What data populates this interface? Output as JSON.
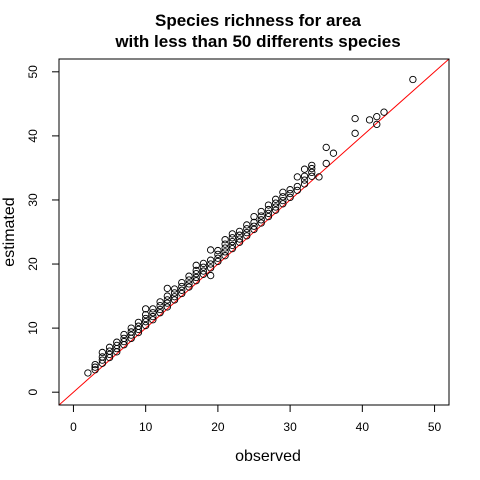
{
  "chart_data": {
    "type": "scatter",
    "title_lines": [
      "Species richness for area",
      "with less than 50 differents species"
    ],
    "xlabel": "observed",
    "ylabel": "estimated",
    "xlim": [
      -2,
      52
    ],
    "ylim": [
      -2,
      52
    ],
    "xticks": [
      0,
      10,
      20,
      30,
      40,
      50
    ],
    "yticks": [
      0,
      10,
      20,
      30,
      40,
      50
    ],
    "point_color": "#000000",
    "reference_line": {
      "slope": 1,
      "intercept": 0,
      "color": "#ff0000"
    },
    "points": [
      [
        2,
        3.0
      ],
      [
        3,
        3.5
      ],
      [
        3,
        3.9
      ],
      [
        3,
        4.3
      ],
      [
        4,
        4.5
      ],
      [
        4,
        5.0
      ],
      [
        4,
        5.5
      ],
      [
        4,
        6.2
      ],
      [
        5,
        5.4
      ],
      [
        5,
        5.9
      ],
      [
        5,
        6.4
      ],
      [
        5,
        7.0
      ],
      [
        6,
        6.3
      ],
      [
        6,
        6.8
      ],
      [
        6,
        7.3
      ],
      [
        6,
        7.8
      ],
      [
        7,
        7.4
      ],
      [
        7,
        7.9
      ],
      [
        7,
        8.4
      ],
      [
        7,
        9.0
      ],
      [
        8,
        8.4
      ],
      [
        8,
        8.9
      ],
      [
        8,
        9.4
      ],
      [
        8,
        10.0
      ],
      [
        9,
        9.3
      ],
      [
        9,
        9.8
      ],
      [
        9,
        10.3
      ],
      [
        9,
        10.9
      ],
      [
        10,
        10.4
      ],
      [
        10,
        11.0
      ],
      [
        10,
        11.5
      ],
      [
        10,
        12.1
      ],
      [
        10,
        13.0
      ],
      [
        11,
        11.3
      ],
      [
        11,
        11.8
      ],
      [
        11,
        12.4
      ],
      [
        11,
        13.0
      ],
      [
        12,
        12.4
      ],
      [
        12,
        12.9
      ],
      [
        12,
        13.5
      ],
      [
        12,
        14.1
      ],
      [
        13,
        13.3
      ],
      [
        13,
        13.9
      ],
      [
        13,
        14.4
      ],
      [
        13,
        15.0
      ],
      [
        13,
        16.2
      ],
      [
        14,
        14.4
      ],
      [
        14,
        14.9
      ],
      [
        14,
        15.5
      ],
      [
        14,
        16.1
      ],
      [
        15,
        15.4
      ],
      [
        15,
        15.9
      ],
      [
        15,
        16.5
      ],
      [
        15,
        17.1
      ],
      [
        16,
        16.4
      ],
      [
        16,
        16.9
      ],
      [
        16,
        17.5
      ],
      [
        16,
        18.1
      ],
      [
        17,
        17.4
      ],
      [
        17,
        17.9
      ],
      [
        17,
        18.5
      ],
      [
        17,
        19.0
      ],
      [
        17,
        19.8
      ],
      [
        18,
        18.4
      ],
      [
        18,
        18.9
      ],
      [
        18,
        19.5
      ],
      [
        18,
        20.1
      ],
      [
        19,
        18.2
      ],
      [
        19,
        19.4
      ],
      [
        19,
        20.0
      ],
      [
        19,
        20.6
      ],
      [
        19,
        22.2
      ],
      [
        20,
        20.4
      ],
      [
        20,
        20.9
      ],
      [
        20,
        21.5
      ],
      [
        20,
        22.1
      ],
      [
        21,
        21.3
      ],
      [
        21,
        21.9
      ],
      [
        21,
        22.5
      ],
      [
        21,
        23.1
      ],
      [
        21,
        23.8
      ],
      [
        22,
        22.4
      ],
      [
        22,
        22.9
      ],
      [
        22,
        23.5
      ],
      [
        22,
        24.1
      ],
      [
        22,
        24.7
      ],
      [
        23,
        23.4
      ],
      [
        23,
        23.9
      ],
      [
        23,
        24.5
      ],
      [
        23,
        25.1
      ],
      [
        24,
        24.4
      ],
      [
        24,
        24.9
      ],
      [
        24,
        25.5
      ],
      [
        24,
        26.1
      ],
      [
        25,
        25.4
      ],
      [
        25,
        25.9
      ],
      [
        25,
        26.5
      ],
      [
        25,
        27.4
      ],
      [
        26,
        26.4
      ],
      [
        26,
        26.9
      ],
      [
        26,
        27.5
      ],
      [
        26,
        28.2
      ],
      [
        27,
        27.4
      ],
      [
        27,
        27.9
      ],
      [
        27,
        28.5
      ],
      [
        27,
        29.2
      ],
      [
        28,
        28.4
      ],
      [
        28,
        28.9
      ],
      [
        28,
        29.5
      ],
      [
        28,
        30.1
      ],
      [
        29,
        29.4
      ],
      [
        29,
        29.9
      ],
      [
        29,
        30.5
      ],
      [
        29,
        31.2
      ],
      [
        30,
        30.4
      ],
      [
        30,
        31.0
      ],
      [
        30,
        31.6
      ],
      [
        31,
        31.5
      ],
      [
        31,
        32.1
      ],
      [
        31,
        33.6
      ],
      [
        32,
        32.5
      ],
      [
        32,
        33.1
      ],
      [
        32,
        33.7
      ],
      [
        32,
        34.8
      ],
      [
        33,
        33.7
      ],
      [
        33,
        34.3
      ],
      [
        33,
        34.9
      ],
      [
        33,
        35.4
      ],
      [
        34,
        33.6
      ],
      [
        35,
        35.7
      ],
      [
        35,
        38.2
      ],
      [
        36,
        37.3
      ],
      [
        39,
        40.4
      ],
      [
        39,
        42.7
      ],
      [
        41,
        42.5
      ],
      [
        42,
        41.8
      ],
      [
        42,
        43.0
      ],
      [
        43,
        43.7
      ],
      [
        47,
        48.8
      ]
    ]
  }
}
